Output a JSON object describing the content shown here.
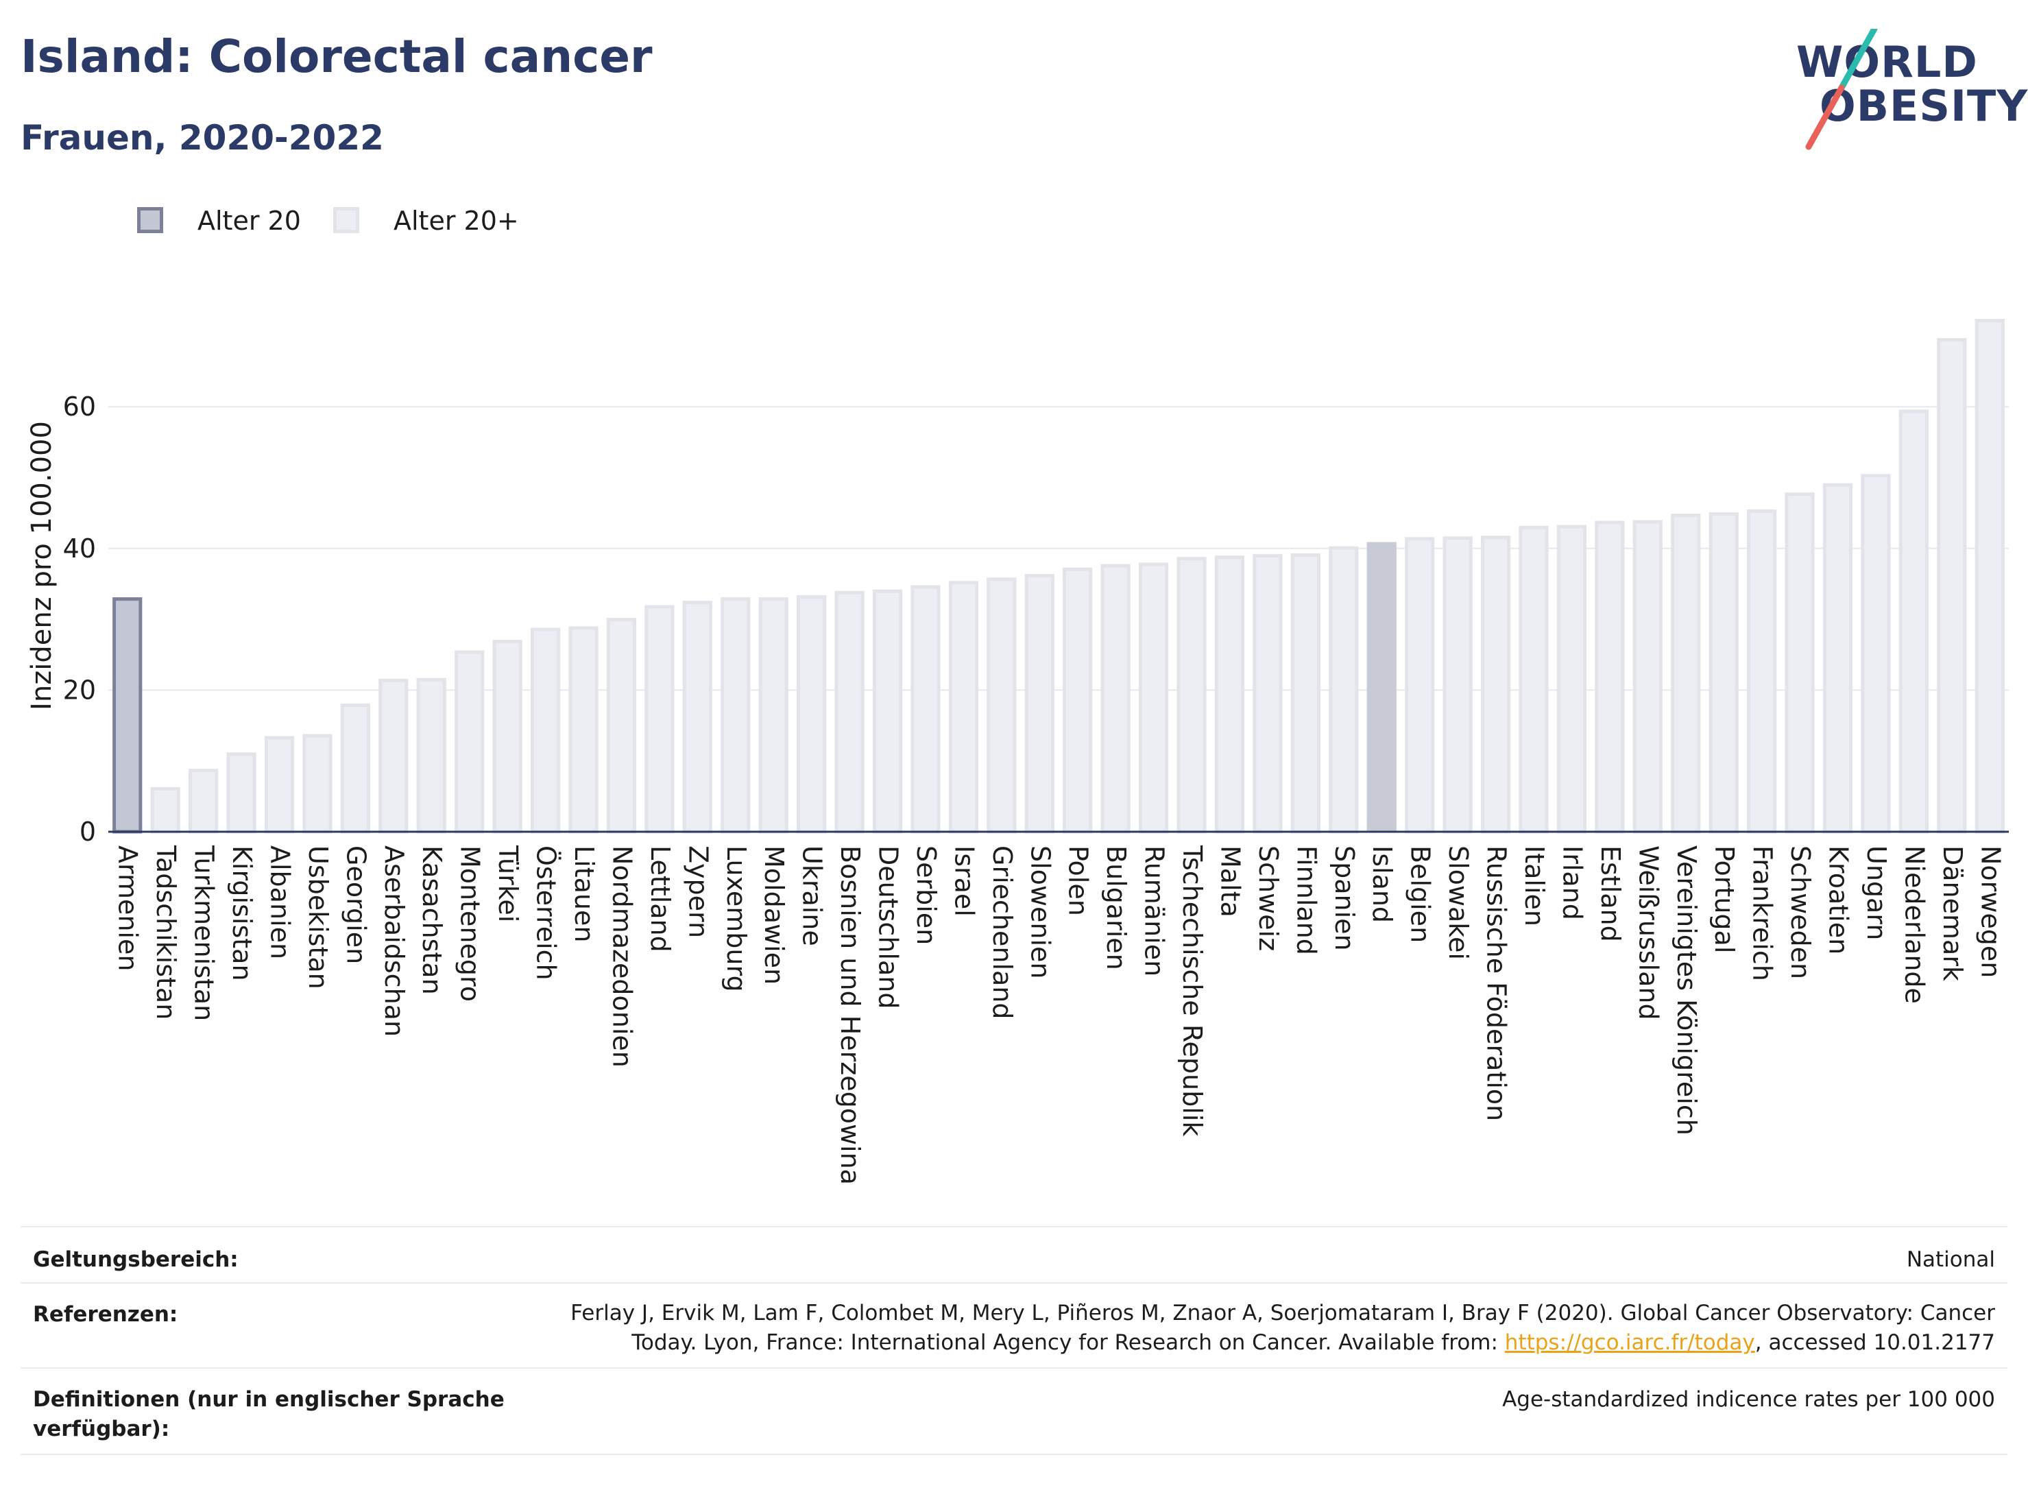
{
  "header": {
    "title": "Island: Colorectal cancer",
    "subtitle": "Frauen, 2020-2022"
  },
  "logo": {
    "line1": "WORLD",
    "line2": "OBESITY",
    "slash_colors": [
      "#2bbbad",
      "#e8625a"
    ]
  },
  "legend": {
    "items": [
      {
        "label": "Alter 20",
        "fill": "#c3c6d3",
        "stroke": "#7d8197"
      },
      {
        "label": "Alter 20+",
        "fill": "#eceef3",
        "stroke": "#e2e4ea"
      }
    ]
  },
  "chart_data": {
    "type": "bar",
    "ylabel": "Inzidenz pro 100.000",
    "xlabel": "",
    "ylim": [
      0,
      77
    ],
    "yticks": [
      0,
      20,
      40,
      60
    ],
    "grid": true,
    "legend_position": "top-left",
    "highlight_category": "Island",
    "categories": [
      "Armenien",
      "Tadschikistan",
      "Turkmenistan",
      "Kirgisistan",
      "Albanien",
      "Usbekistan",
      "Georgien",
      "Aserbaidschan",
      "Kasachstan",
      "Montenegro",
      "Türkei",
      "Österreich",
      "Litauen",
      "Nordmazedonien",
      "Lettland",
      "Zypern",
      "Luxemburg",
      "Moldawien",
      "Ukraine",
      "Bosnien und Herzegowina",
      "Deutschland",
      "Serbien",
      "Israel",
      "Griechenland",
      "Slowenien",
      "Polen",
      "Bulgarien",
      "Rumänien",
      "Tschechische Republik",
      "Malta",
      "Schweiz",
      "Finnland",
      "Spanien",
      "Island",
      "Belgien",
      "Slowakei",
      "Russische Föderation",
      "Italien",
      "Irland",
      "Estland",
      "Weißrussland",
      "Vereinigtes Königreich",
      "Portugal",
      "Frankreich",
      "Schweden",
      "Kroatien",
      "Ungarn",
      "Niederlande",
      "Dänemark",
      "Norwegen"
    ],
    "series": [
      {
        "name": "Alter 20",
        "values": [
          33.1,
          null,
          null,
          null,
          null,
          null,
          null,
          null,
          null,
          null,
          null,
          null,
          null,
          null,
          null,
          null,
          null,
          null,
          null,
          null,
          null,
          null,
          null,
          null,
          null,
          null,
          null,
          null,
          null,
          null,
          null,
          null,
          null,
          null,
          null,
          null,
          null,
          null,
          null,
          null,
          null,
          null,
          null,
          null,
          null,
          null,
          null,
          null,
          null,
          null
        ]
      },
      {
        "name": "Alter 20+",
        "values": [
          null,
          6.3,
          8.9,
          11.2,
          13.5,
          13.8,
          18.1,
          21.6,
          21.7,
          25.6,
          27.1,
          28.8,
          29.0,
          30.2,
          32.0,
          32.6,
          33.1,
          33.1,
          33.4,
          34.0,
          34.2,
          34.8,
          35.4,
          35.9,
          36.4,
          37.3,
          37.8,
          38.0,
          38.8,
          39.0,
          39.2,
          39.3,
          40.3,
          40.9,
          41.6,
          41.7,
          41.8,
          43.2,
          43.3,
          43.9,
          44.0,
          44.9,
          45.1,
          45.5,
          47.9,
          49.2,
          50.5,
          59.6,
          69.7,
          72.4
        ]
      }
    ]
  },
  "footer": {
    "scope_label": "Geltungsbereich:",
    "scope_value": "National",
    "refs_label": "Referenzen:",
    "refs_line1": "Ferlay J, Ervik M, Lam F, Colombet M, Mery L, Piñeros M, Znaor A, Soerjomataram I, Bray F (2020). Global Cancer Observatory: Cancer",
    "refs_line2_pre": "Today. Lyon, France: International Agency for Research on Cancer. Available from: ",
    "refs_link": "https://gco.iarc.fr/today",
    "refs_line2_post": ", accessed 10.01.2177",
    "defs_label_line1": "Definitionen (nur in englischer Sprache",
    "defs_label_line2": "verfügbar):",
    "defs_value": "Age-standardized indicence rates per 100 000"
  },
  "colors": {
    "title": "#2b3a67",
    "alter20_fill": "#c3c6d3",
    "alter20_stroke": "#7d8197",
    "alter20plus_fill": "#eceef3",
    "alter20plus_stroke": "#e2e4ea",
    "highlight_fill": "#c8cad6",
    "axis": "#2b3a67",
    "grid": "#e6e8ec",
    "link": "#e8a317"
  }
}
